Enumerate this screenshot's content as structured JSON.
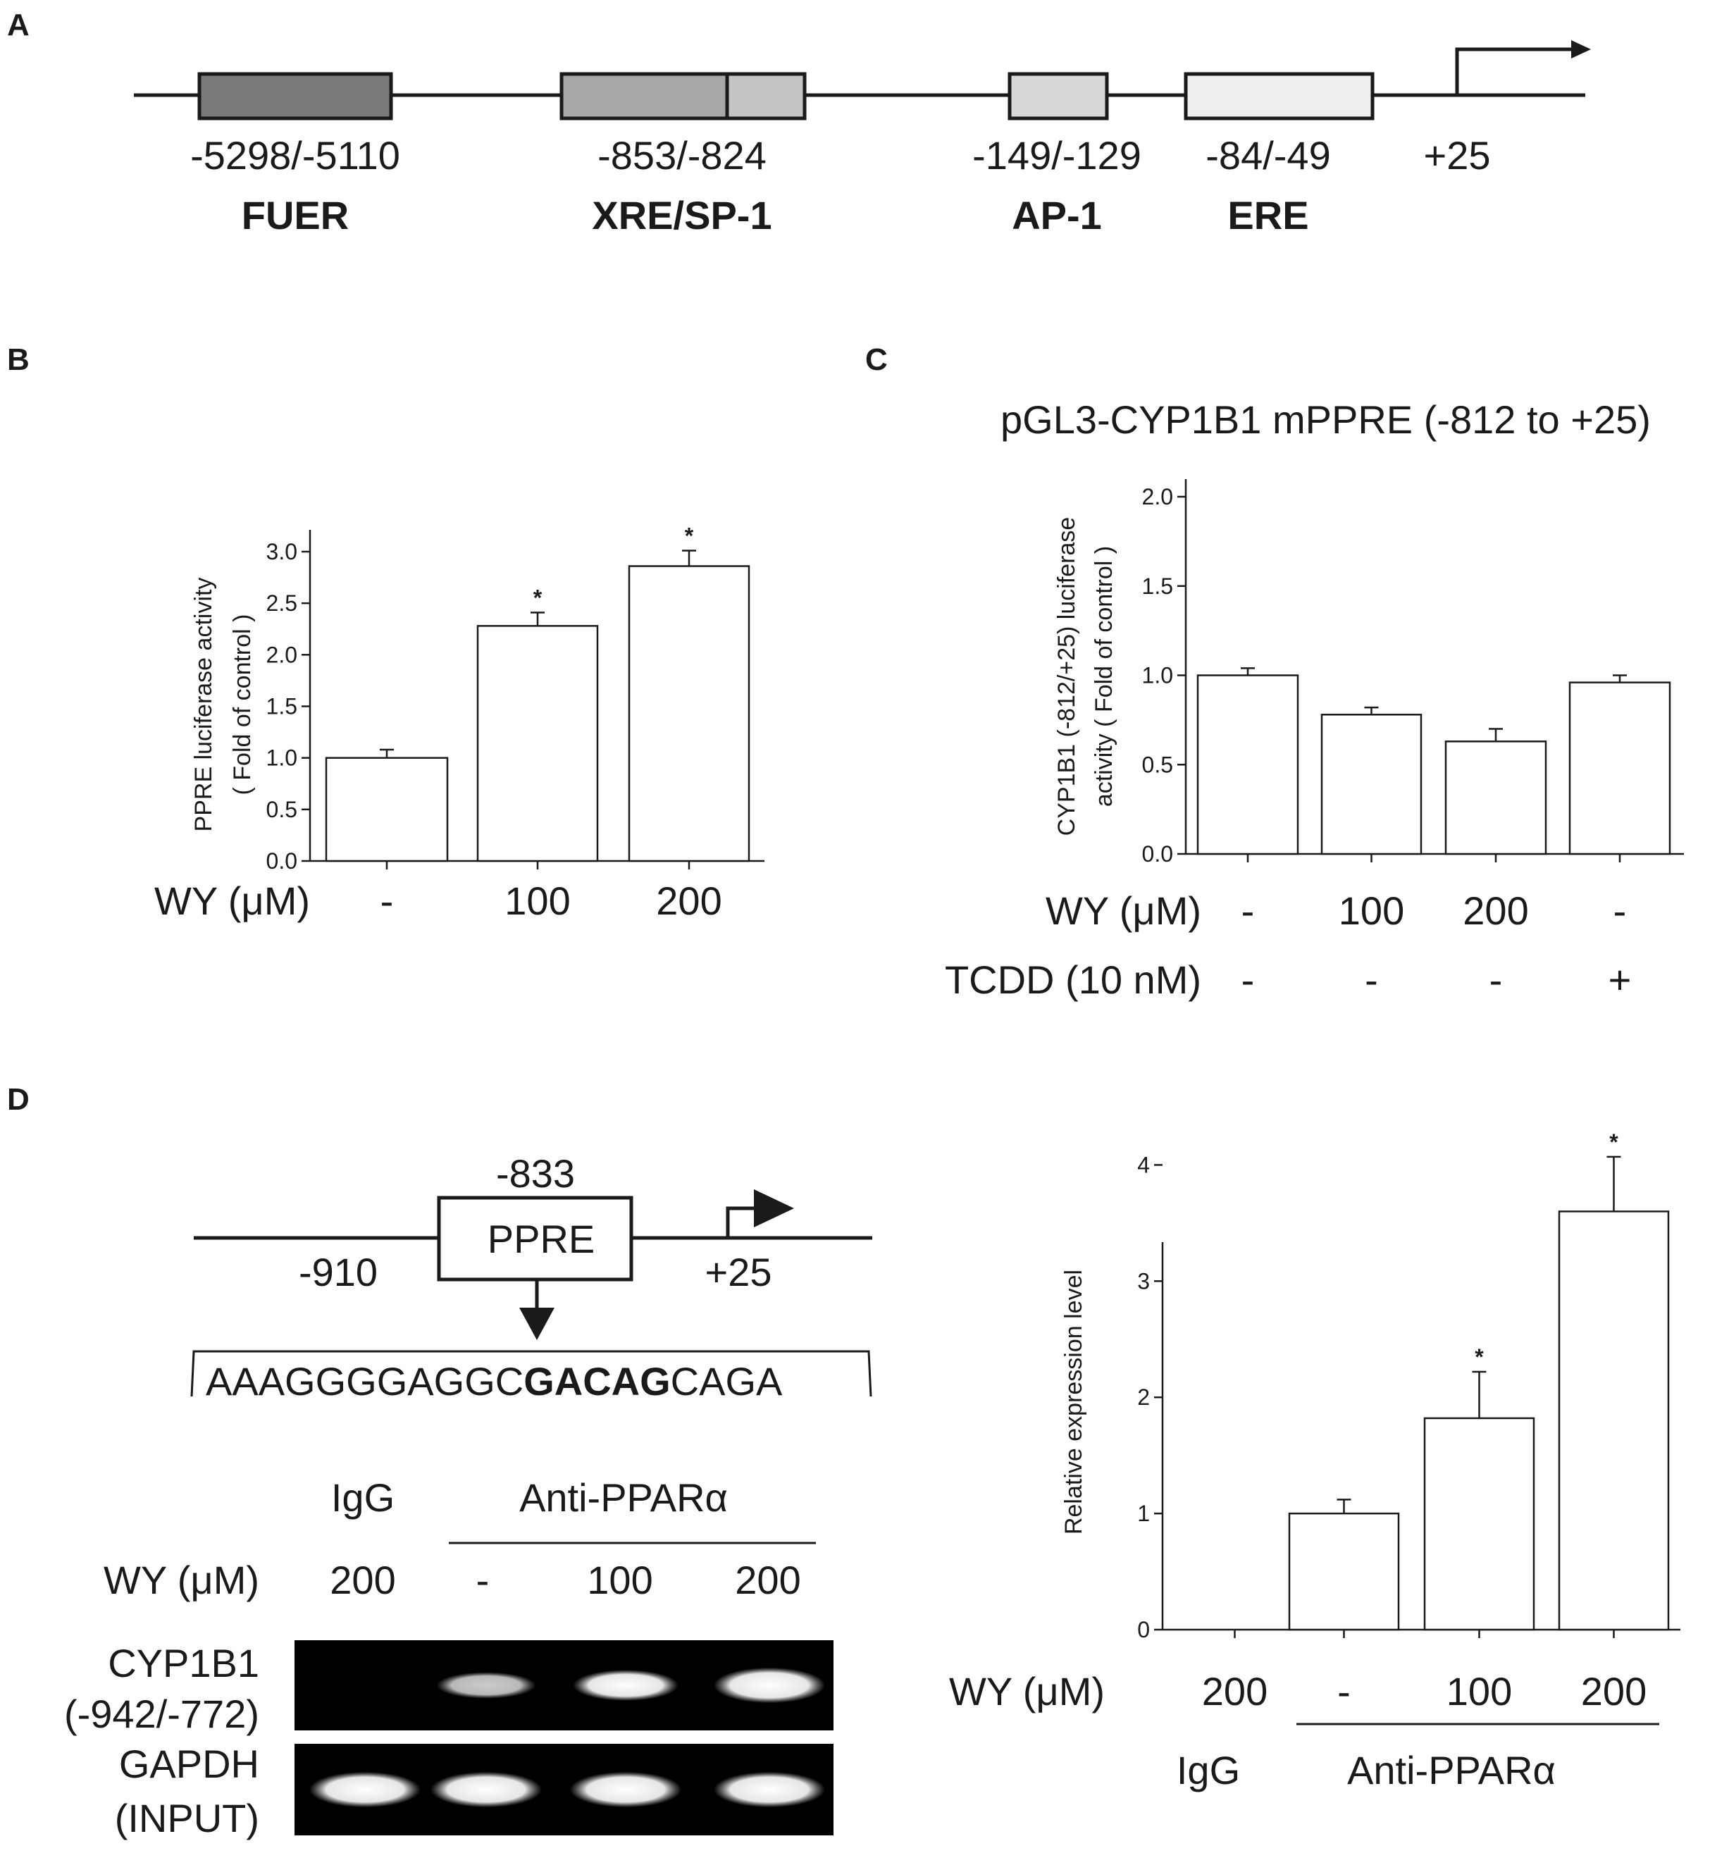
{
  "panels": {
    "A": {
      "letter": "A",
      "elements": [
        {
          "position": "-5298/-5110",
          "name": "FUER",
          "color": "#7a7a7a"
        },
        {
          "position": "-853/-824",
          "name": "XRE/SP-1",
          "color": "#a8a8a8",
          "color2": "#c4c4c4"
        },
        {
          "position": "-149/-129",
          "name": "AP-1",
          "color": "#d8d8d8"
        },
        {
          "position": "-84/-49",
          "name": "ERE",
          "color": "#efefef"
        }
      ],
      "tss_label": "+25"
    },
    "B": {
      "letter": "B"
    },
    "C": {
      "letter": "C",
      "title": "pGL3-CYP1B1 mPPRE (-812 to +25)"
    },
    "D": {
      "letter": "D",
      "promoter": {
        "box_label": "PPRE",
        "position_top": "-833",
        "left_label": "-910",
        "right_label": "+25",
        "sequence_prefix": "AAAGGGGAGGC",
        "sequence_bold": "GACAG",
        "sequence_suffix": "CAGA"
      },
      "gel": {
        "group_igg": "IgG",
        "group_anti": "Anti-PPARα",
        "wy_label": "WY (μM)",
        "lanes": [
          "200",
          "-",
          "100",
          "200"
        ],
        "rows": [
          {
            "label1": "CYP1B1",
            "label2": "(-942/-772)",
            "band_intensity": [
              0.0,
              0.45,
              0.7,
              0.95
            ]
          },
          {
            "label1": "GAPDH",
            "label2": "(INPUT)",
            "band_intensity": [
              0.95,
              0.95,
              0.95,
              0.95
            ]
          }
        ]
      }
    }
  },
  "chart_data": [
    {
      "id": "B",
      "type": "bar",
      "ylabel_line1": "PPRE luciferase activity",
      "ylabel_line2": "( Fold of control )",
      "ylim": [
        0,
        3.0
      ],
      "yticks": [
        "0.0",
        "0.5",
        "1.0",
        "1.5",
        "2.0",
        "2.5",
        "3.0"
      ],
      "values": [
        1.0,
        2.28,
        2.86
      ],
      "errors": [
        0.08,
        0.13,
        0.15
      ],
      "significance": [
        "",
        "*",
        "*"
      ],
      "treatments": [
        {
          "label": "WY (μM)",
          "values": [
            "-",
            "100",
            "200"
          ]
        }
      ]
    },
    {
      "id": "C",
      "type": "bar",
      "ylabel_line1": "CYP1B1 (-812/+25) luciferase",
      "ylabel_line2": "activity ( Fold of control )",
      "ylim": [
        0,
        2.0
      ],
      "yticks": [
        "0.0",
        "0.5",
        "1.0",
        "1.5",
        "2.0"
      ],
      "values": [
        1.0,
        0.78,
        0.63,
        0.96
      ],
      "errors": [
        0.04,
        0.04,
        0.07,
        0.04
      ],
      "significance": [
        "",
        "",
        "",
        ""
      ],
      "treatments": [
        {
          "label": "WY (μM)",
          "values": [
            "-",
            "100",
            "200",
            "-"
          ]
        },
        {
          "label": "TCDD (10 nM)",
          "values": [
            "-",
            "-",
            "-",
            "+"
          ]
        }
      ]
    },
    {
      "id": "D",
      "type": "bar",
      "ylabel": "Relative expression level",
      "ylim": [
        0,
        4.5
      ],
      "yticks": [
        "0",
        "1",
        "2",
        "3",
        "4"
      ],
      "values": [
        0,
        1.0,
        1.82,
        3.6
      ],
      "errors": [
        0,
        0.12,
        0.4,
        0.47
      ],
      "significance": [
        "",
        "",
        "*",
        "*"
      ],
      "treatments": [
        {
          "label": "WY (μM)",
          "values": [
            "200",
            "-",
            "100",
            "200"
          ]
        }
      ],
      "groups": [
        "IgG",
        "Anti-PPARα"
      ]
    }
  ]
}
